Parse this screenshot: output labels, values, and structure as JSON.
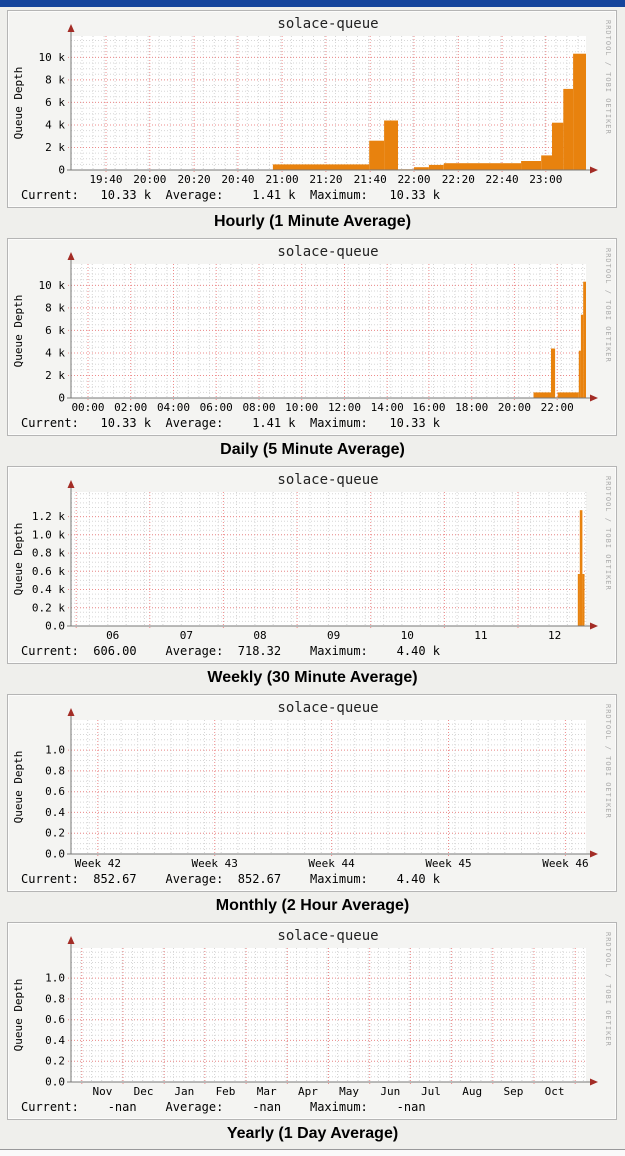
{
  "page": {
    "topbar_color": "#15459C",
    "background": "#efefec",
    "watermark": "RRDTOOL / TOBI OETIKER",
    "colors": {
      "area": "#E8820E",
      "grid_minor": "#d6d6d6",
      "grid_major": "#EE8B8B",
      "axis": "#777777",
      "arrow": "#A32C26",
      "plot_bg": "#ffffff"
    }
  },
  "chart_data": [
    {
      "type": "area",
      "title": "solace-queue",
      "heading": "Hourly (1 Minute Average)",
      "ylabel": "Queue Depth",
      "ylim": [
        0,
        11900
      ],
      "y_ticks": [
        {
          "v": 0,
          "label": "0"
        },
        {
          "v": 2000,
          "label": "2 k"
        },
        {
          "v": 4000,
          "label": "4 k"
        },
        {
          "v": 6000,
          "label": "6 k"
        },
        {
          "v": 8000,
          "label": "8 k"
        },
        {
          "v": 10000,
          "label": "10 k"
        }
      ],
      "y_minor_step": 500,
      "x_gridlines": [
        0.068,
        0.153,
        0.239,
        0.324,
        0.41,
        0.495,
        0.581,
        0.666,
        0.752,
        0.837,
        0.922
      ],
      "x_labels": [
        {
          "pos": 0.068,
          "text": "19:40"
        },
        {
          "pos": 0.153,
          "text": "20:00"
        },
        {
          "pos": 0.239,
          "text": "20:20"
        },
        {
          "pos": 0.324,
          "text": "20:40"
        },
        {
          "pos": 0.41,
          "text": "21:00"
        },
        {
          "pos": 0.495,
          "text": "21:20"
        },
        {
          "pos": 0.581,
          "text": "21:40"
        },
        {
          "pos": 0.666,
          "text": "22:00"
        },
        {
          "pos": 0.752,
          "text": "22:20"
        },
        {
          "pos": 0.837,
          "text": "22:40"
        },
        {
          "pos": 0.922,
          "text": "23:00"
        }
      ],
      "x_minor_step": 0.0214,
      "segments": [
        [
          0.392,
          0.579,
          500
        ],
        [
          0.579,
          0.608,
          2600
        ],
        [
          0.608,
          0.635,
          4400
        ],
        [
          0.635,
          0.666,
          60
        ],
        [
          0.666,
          0.695,
          250
        ],
        [
          0.695,
          0.724,
          450
        ],
        [
          0.724,
          0.874,
          600
        ],
        [
          0.874,
          0.913,
          800
        ],
        [
          0.913,
          0.934,
          1300
        ],
        [
          0.934,
          0.956,
          4200
        ],
        [
          0.956,
          0.975,
          7200
        ],
        [
          0.975,
          1.0,
          10330
        ]
      ],
      "stats": {
        "current": "10.33 k",
        "average": "1.41 k",
        "maximum": "10.33 k"
      },
      "legend": "Current:   10.33 k  Average:    1.41 k  Maximum:   10.33 k"
    },
    {
      "type": "area",
      "title": "solace-queue",
      "heading": "Daily (5 Minute Average)",
      "ylabel": "Queue Depth",
      "ylim": [
        0,
        11900
      ],
      "y_ticks": [
        {
          "v": 0,
          "label": "0"
        },
        {
          "v": 2000,
          "label": "2 k"
        },
        {
          "v": 4000,
          "label": "4 k"
        },
        {
          "v": 6000,
          "label": "6 k"
        },
        {
          "v": 8000,
          "label": "8 k"
        },
        {
          "v": 10000,
          "label": "10 k"
        }
      ],
      "y_minor_step": 500,
      "x_gridlines": [
        0.033,
        0.116,
        0.199,
        0.282,
        0.365,
        0.448,
        0.531,
        0.614,
        0.695,
        0.778,
        0.861,
        0.944
      ],
      "x_labels": [
        {
          "pos": 0.033,
          "text": "00:00"
        },
        {
          "pos": 0.116,
          "text": "02:00"
        },
        {
          "pos": 0.199,
          "text": "04:00"
        },
        {
          "pos": 0.282,
          "text": "06:00"
        },
        {
          "pos": 0.365,
          "text": "08:00"
        },
        {
          "pos": 0.448,
          "text": "10:00"
        },
        {
          "pos": 0.531,
          "text": "12:00"
        },
        {
          "pos": 0.614,
          "text": "14:00"
        },
        {
          "pos": 0.695,
          "text": "16:00"
        },
        {
          "pos": 0.778,
          "text": "18:00"
        },
        {
          "pos": 0.861,
          "text": "20:00"
        },
        {
          "pos": 0.944,
          "text": "22:00"
        }
      ],
      "x_minor_step": 0.0207,
      "segments": [
        [
          0.898,
          0.932,
          500
        ],
        [
          0.932,
          0.94,
          4400
        ],
        [
          0.94,
          0.945,
          60
        ],
        [
          0.945,
          0.986,
          500
        ],
        [
          0.986,
          0.99,
          4200
        ],
        [
          0.99,
          0.9945,
          7400
        ],
        [
          0.9945,
          1.0,
          10330
        ]
      ],
      "stats": {
        "current": "10.33 k",
        "average": "1.41 k",
        "maximum": "10.33 k"
      },
      "legend": "Current:   10.33 k  Average:    1.41 k  Maximum:   10.33 k"
    },
    {
      "type": "area",
      "title": "solace-queue",
      "heading": "Weekly (30 Minute Average)",
      "ylabel": "Queue Depth",
      "ylim": [
        0,
        1470
      ],
      "y_ticks": [
        {
          "v": 0,
          "label": "0.0"
        },
        {
          "v": 200,
          "label": "0.2 k"
        },
        {
          "v": 400,
          "label": "0.4 k"
        },
        {
          "v": 600,
          "label": "0.6 k"
        },
        {
          "v": 800,
          "label": "0.8 k"
        },
        {
          "v": 1000,
          "label": "1.0 k"
        },
        {
          "v": 1200,
          "label": "1.2 k"
        }
      ],
      "y_minor_step": 50,
      "x_gridlines": [
        0.01,
        0.153,
        0.296,
        0.439,
        0.582,
        0.725,
        0.868
      ],
      "x_labels": [
        {
          "pos": 0.081,
          "text": "06"
        },
        {
          "pos": 0.224,
          "text": "07"
        },
        {
          "pos": 0.367,
          "text": "08"
        },
        {
          "pos": 0.51,
          "text": "09"
        },
        {
          "pos": 0.653,
          "text": "10"
        },
        {
          "pos": 0.796,
          "text": "11"
        },
        {
          "pos": 0.939,
          "text": "12"
        }
      ],
      "x_minor_step": 0.0357,
      "segments": [
        [
          0.984,
          0.988,
          570
        ],
        [
          0.988,
          0.993,
          1270
        ],
        [
          0.993,
          0.997,
          570
        ]
      ],
      "stats": {
        "current": "606.00",
        "average": "718.32",
        "maximum": "4.40 k"
      },
      "legend": "Current:  606.00    Average:  718.32    Maximum:    4.40 k"
    },
    {
      "type": "area",
      "title": "solace-queue",
      "heading": "Monthly (2 Hour Average)",
      "ylabel": "Queue Depth",
      "ylim": [
        0,
        1.29
      ],
      "y_ticks": [
        {
          "v": 0,
          "label": "0.0"
        },
        {
          "v": 0.2,
          "label": "0.2"
        },
        {
          "v": 0.4,
          "label": "0.4"
        },
        {
          "v": 0.6,
          "label": "0.6"
        },
        {
          "v": 0.8,
          "label": "0.8"
        },
        {
          "v": 1.0,
          "label": "1.0"
        }
      ],
      "y_minor_step": 0.05,
      "x_gridlines": [
        0.052,
        0.279,
        0.506,
        0.733,
        0.96
      ],
      "x_labels": [
        {
          "pos": 0.052,
          "text": "Week 42"
        },
        {
          "pos": 0.279,
          "text": "Week 43"
        },
        {
          "pos": 0.506,
          "text": "Week 44"
        },
        {
          "pos": 0.733,
          "text": "Week 45"
        },
        {
          "pos": 0.96,
          "text": "Week 46"
        }
      ],
      "x_minor_step": 0.0324,
      "segments": [],
      "stats": {
        "current": "852.67",
        "average": "852.67",
        "maximum": "4.40 k"
      },
      "legend": "Current:  852.67    Average:  852.67    Maximum:    4.40 k"
    },
    {
      "type": "area",
      "title": "solace-queue",
      "heading": "Yearly (1 Day Average)",
      "ylabel": "Queue Depth",
      "ylim": [
        0,
        1.29
      ],
      "y_ticks": [
        {
          "v": 0,
          "label": "0.0"
        },
        {
          "v": 0.2,
          "label": "0.2"
        },
        {
          "v": 0.4,
          "label": "0.4"
        },
        {
          "v": 0.6,
          "label": "0.6"
        },
        {
          "v": 0.8,
          "label": "0.8"
        },
        {
          "v": 1.0,
          "label": "1.0"
        }
      ],
      "y_minor_step": 0.05,
      "x_gridlines": [
        0.021,
        0.101,
        0.181,
        0.26,
        0.34,
        0.42,
        0.5,
        0.58,
        0.659,
        0.739,
        0.819,
        0.899,
        0.979
      ],
      "x_labels": [
        {
          "pos": 0.061,
          "text": "Nov"
        },
        {
          "pos": 0.141,
          "text": "Dec"
        },
        {
          "pos": 0.22,
          "text": "Jan"
        },
        {
          "pos": 0.3,
          "text": "Feb"
        },
        {
          "pos": 0.38,
          "text": "Mar"
        },
        {
          "pos": 0.46,
          "text": "Apr"
        },
        {
          "pos": 0.54,
          "text": "May"
        },
        {
          "pos": 0.62,
          "text": "Jun"
        },
        {
          "pos": 0.699,
          "text": "Jul"
        },
        {
          "pos": 0.779,
          "text": "Aug"
        },
        {
          "pos": 0.859,
          "text": "Sep"
        },
        {
          "pos": 0.939,
          "text": "Oct"
        }
      ],
      "x_minor_step": 0.0199,
      "segments": [],
      "stats": {
        "current": "-nan",
        "average": "-nan",
        "maximum": "-nan"
      },
      "legend": "Current:    -nan    Average:    -nan    Maximum:    -nan"
    }
  ]
}
